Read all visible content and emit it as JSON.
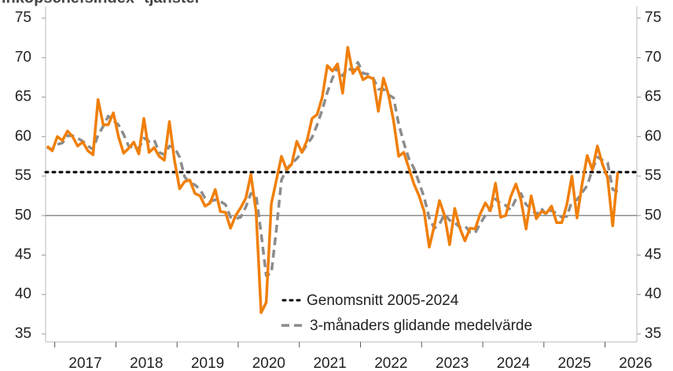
{
  "chart_data": {
    "type": "line",
    "title": "Inköpschefsindex -tjänster",
    "x": [
      2016.875,
      2016.958,
      2017.042,
      2017.125,
      2017.208,
      2017.292,
      2017.375,
      2017.458,
      2017.542,
      2017.625,
      2017.708,
      2017.792,
      2017.875,
      2017.958,
      2018.042,
      2018.125,
      2018.208,
      2018.292,
      2018.375,
      2018.458,
      2018.542,
      2018.625,
      2018.708,
      2018.792,
      2018.875,
      2018.958,
      2019.042,
      2019.125,
      2019.208,
      2019.292,
      2019.375,
      2019.458,
      2019.542,
      2019.625,
      2019.708,
      2019.792,
      2019.875,
      2019.958,
      2020.042,
      2020.125,
      2020.208,
      2020.292,
      2020.375,
      2020.458,
      2020.542,
      2020.625,
      2020.708,
      2020.792,
      2020.875,
      2020.958,
      2021.042,
      2021.125,
      2021.208,
      2021.292,
      2021.375,
      2021.458,
      2021.542,
      2021.625,
      2021.708,
      2021.792,
      2021.875,
      2021.958,
      2022.042,
      2022.125,
      2022.208,
      2022.292,
      2022.375,
      2022.458,
      2022.542,
      2022.625,
      2022.708,
      2022.792,
      2022.875,
      2022.958,
      2023.042,
      2023.125,
      2023.208,
      2023.292,
      2023.375,
      2023.458,
      2023.542,
      2023.625,
      2023.708,
      2023.792,
      2023.875,
      2023.958,
      2024.042,
      2024.125,
      2024.208,
      2024.292,
      2024.375,
      2024.458,
      2024.542,
      2024.625,
      2024.708,
      2024.792,
      2024.875,
      2024.958,
      2025.042,
      2025.125,
      2025.208,
      2025.292,
      2025.375,
      2025.458,
      2025.542,
      2025.625,
      2025.708,
      2025.792,
      2025.875,
      2025.958,
      2026.042,
      2026.125,
      2026.208
    ],
    "series": [
      {
        "color": "#f07f09",
        "style": "solid",
        "values": [
          58.8,
          58.2,
          60,
          59.5,
          60.7,
          60,
          58.8,
          59.3,
          58.2,
          57.7,
          64.7,
          61.5,
          61.5,
          63,
          60,
          57.9,
          58.5,
          59.3,
          57.8,
          62.3,
          58,
          58.6,
          57.5,
          57,
          61.9,
          57,
          53.4,
          54.3,
          54.5,
          52.8,
          52.5,
          51.2,
          51.6,
          53.3,
          50.5,
          50.4,
          48.4,
          50,
          51,
          52.2,
          55.2,
          50.5,
          37.7,
          39,
          51.5,
          54.5,
          57.5,
          55.8,
          56.5,
          59.4,
          58,
          59.5,
          62.3,
          62.8,
          65,
          69,
          68.3,
          69.2,
          65.5,
          71.3,
          68,
          68.8,
          67.2,
          67.6,
          67.3,
          63.2,
          67.4,
          65.3,
          62,
          57.5,
          58,
          56,
          54,
          52.5,
          50.5,
          46,
          48.7,
          51.9,
          50,
          46.3,
          50.9,
          48.4,
          46.8,
          48.4,
          48.3,
          50.2,
          51.6,
          50.6,
          54.1,
          49.8,
          50,
          52.4,
          54,
          52,
          48.3,
          52.5,
          49.6,
          50.5,
          50.3,
          51.2,
          49.1,
          49.1,
          51.4,
          55,
          49.7,
          54,
          57.6,
          55.8,
          58.8,
          56.5,
          54.8,
          48.7,
          55.5
        ]
      },
      {
        "name": "3-månaders glidande medelvärde",
        "color": "#8c8c8c",
        "style": "dashed",
        "values": [
          58.6,
          58.4,
          59,
          59.2,
          60.1,
          60.1,
          59.8,
          59.4,
          58.8,
          58.4,
          60.2,
          61.3,
          62.6,
          62,
          61.5,
          60.3,
          58.8,
          58.6,
          58.5,
          59.8,
          59.4,
          59.6,
          58,
          57.7,
          58.8,
          58.6,
          57.4,
          54.9,
          54.1,
          53.9,
          53.3,
          52.2,
          51.8,
          52,
          51.8,
          51.4,
          49.8,
          49.6,
          49.8,
          51.1,
          52.8,
          52.6,
          47.8,
          42.4,
          42.7,
          48.3,
          54.5,
          55.9,
          56.6,
          57.2,
          58,
          59,
          59.9,
          61.5,
          63.4,
          65.6,
          67.4,
          68.8,
          67.7,
          68.7,
          68.3,
          69.4,
          68,
          67.9,
          67.4,
          66,
          66,
          65.3,
          64.9,
          61.6,
          59.2,
          57.2,
          56,
          54.2,
          52.3,
          49.7,
          48.4,
          48.9,
          50.2,
          49.4,
          49.1,
          48.5,
          48.7,
          47.9,
          47.8,
          49,
          50,
          50.8,
          52.1,
          51.5,
          51.3,
          50.7,
          52.1,
          52.8,
          51.4,
          50.9,
          50.1,
          50.9,
          50.1,
          50.7,
          50.2,
          49.8,
          49.9,
          51.8,
          52,
          52.9,
          53.8,
          55.8,
          57.4,
          57,
          56.7,
          53.3,
          53
        ]
      }
    ],
    "average": {
      "name": "Genomsnitt 2005-2024",
      "value": 55.5,
      "color": "#000000"
    },
    "reference_line": 50,
    "xlim": [
      2016.85,
      2026.52
    ],
    "xticks": [
      2017,
      2018,
      2019,
      2020,
      2021,
      2022,
      2023,
      2024,
      2025,
      2026
    ],
    "ylim": [
      34,
      76.5
    ],
    "yticks": [
      35,
      40,
      45,
      50,
      55,
      60,
      65,
      70,
      75
    ],
    "grid": false,
    "legend": "bottom-right"
  }
}
